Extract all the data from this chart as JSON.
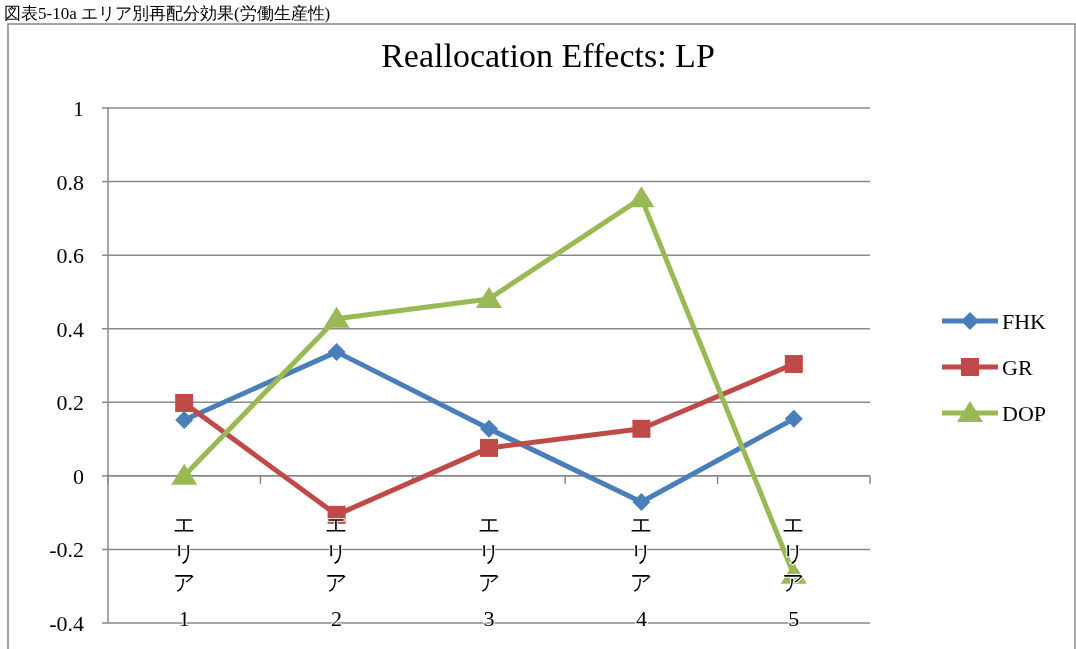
{
  "chart_data": {
    "type": "line",
    "title": "Reallocation Effects: LP",
    "annotations": [
      "図表5-10a エリア別再配分効果(労働生産性)"
    ],
    "categories": [
      "エリア1",
      "エリア2",
      "エリア3",
      "エリア4",
      "エリア5"
    ],
    "series": [
      {
        "name": "FHK",
        "color": "#4a7ebb",
        "marker": "diamond",
        "values": [
          0.152,
          0.337,
          0.128,
          -0.071,
          0.155
        ]
      },
      {
        "name": "GR",
        "color": "#be4b48",
        "marker": "square",
        "values": [
          0.198,
          -0.106,
          0.076,
          0.128,
          0.304
        ]
      },
      {
        "name": "DOP",
        "color": "#98b954",
        "marker": "triangle",
        "values": [
          0,
          0.427,
          0.481,
          0.755,
          -0.269
        ]
      }
    ],
    "ylim": [
      -0.4,
      1
    ],
    "yticks": [
      -0.4,
      -0.2,
      0,
      0.2,
      0.4,
      0.6,
      0.8,
      1
    ],
    "grid": "y",
    "legend": "right"
  }
}
